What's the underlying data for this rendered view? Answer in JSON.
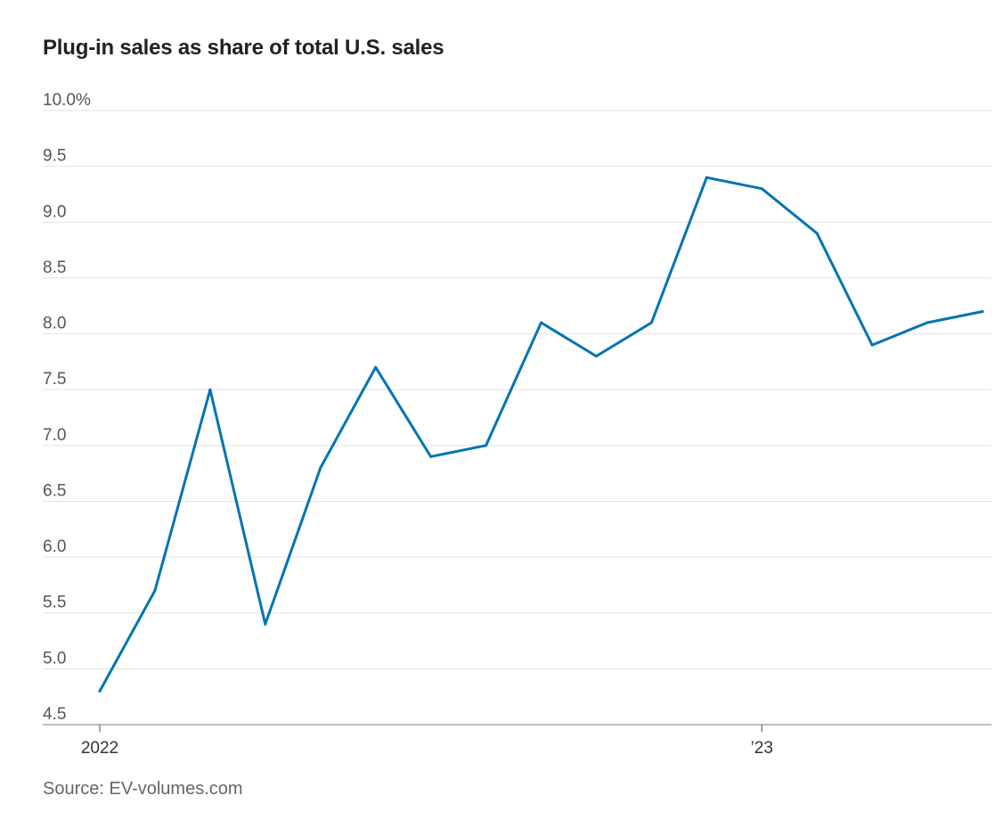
{
  "chart_data": {
    "type": "line",
    "title": "Plug-in sales as share of total U.S. sales",
    "source": "Source: EV-volumes.com",
    "ylim": [
      4.5,
      10.0
    ],
    "yticks": [
      10.0,
      9.5,
      9.0,
      8.5,
      8.0,
      7.5,
      7.0,
      6.5,
      6.0,
      5.5,
      5.0,
      4.5
    ],
    "ytick_labels": [
      "10.0%",
      "9.5",
      "9.0",
      "8.5",
      "8.0",
      "7.5",
      "7.0",
      "6.5",
      "6.0",
      "5.5",
      "5.0",
      "4.5"
    ],
    "xticks": [
      {
        "label": "2022",
        "month_index": 0
      },
      {
        "label": "’23",
        "month_index": 12
      }
    ],
    "grid": true,
    "color": "#0274b3",
    "series": [
      {
        "values": [
          4.8,
          5.7,
          7.5,
          5.4,
          6.8,
          7.7,
          6.9,
          7.0,
          8.1,
          7.8,
          8.1,
          9.4,
          9.3,
          8.9,
          7.9,
          8.1,
          8.2
        ]
      }
    ]
  }
}
